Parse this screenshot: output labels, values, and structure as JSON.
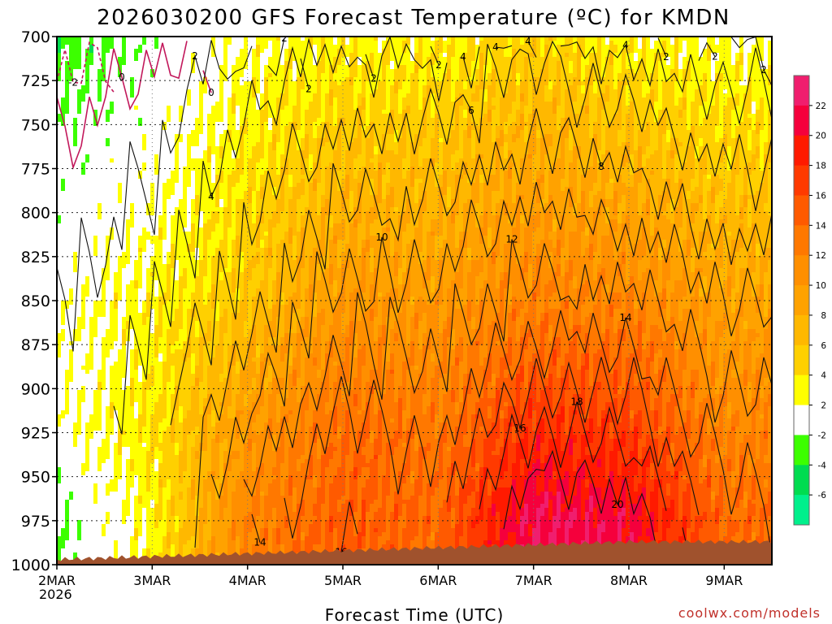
{
  "chart_data": {
    "type": "heatmap",
    "title": "2026030200 GFS Forecast Temperature (ºC) for KMDN",
    "xlabel": "Forecast Time (UTC)",
    "ylabel": "",
    "source": "coolwx.com/models",
    "year_label": "2026",
    "x_ticks": [
      "2MAR",
      "3MAR",
      "4MAR",
      "5MAR",
      "6MAR",
      "7MAR",
      "8MAR",
      "9MAR"
    ],
    "y_ticks": [
      700,
      725,
      750,
      775,
      800,
      825,
      850,
      875,
      900,
      925,
      950,
      975,
      1000
    ],
    "ylim": [
      1000,
      700
    ],
    "x_range_days": [
      0,
      7.5
    ],
    "colorbar": {
      "labels": [
        "22",
        "20",
        "18",
        "16",
        "14",
        "12",
        "10",
        "8",
        "6",
        "4",
        "2",
        "-2",
        "-4",
        "-6"
      ],
      "levels": [
        {
          "label": "22",
          "color": "#f01e6e"
        },
        {
          "label": "20",
          "color": "#f5003c"
        },
        {
          "label": "18",
          "color": "#ff1a00"
        },
        {
          "label": "16",
          "color": "#ff3a00"
        },
        {
          "label": "14",
          "color": "#ff5a00"
        },
        {
          "label": "12",
          "color": "#ff7800"
        },
        {
          "label": "10",
          "color": "#ff8f00"
        },
        {
          "label": "8",
          "color": "#ffa200"
        },
        {
          "label": "6",
          "color": "#ffb800"
        },
        {
          "label": "4",
          "color": "#ffd000"
        },
        {
          "label": "2",
          "color": "#ffff00"
        },
        {
          "label": "-2",
          "color": "#ffffff"
        },
        {
          "label": "-4",
          "color": "#3cff00"
        },
        {
          "label": "-6",
          "color": "#00dc50"
        },
        {
          "label": "",
          "color": "#00f08c"
        }
      ]
    },
    "terrain_color": "#a0522d",
    "contour_labels": [
      "-2",
      "0",
      "2",
      "4",
      "6",
      "8",
      "10",
      "12",
      "14",
      "16",
      "18",
      "20"
    ],
    "series": [
      {
        "name": "700 hPa",
        "values": [
          -3,
          -1,
          2,
          3,
          3,
          5,
          3,
          2
        ]
      },
      {
        "name": "850 hPa",
        "values": [
          1,
          3,
          6,
          10,
          10,
          12,
          12,
          9
        ]
      },
      {
        "name": "925 hPa",
        "values": [
          1,
          4,
          10,
          14,
          13,
          18,
          17,
          12
        ]
      },
      {
        "name": "975 hPa",
        "values": [
          -2,
          3,
          12,
          15,
          14,
          22,
          21,
          14
        ]
      }
    ]
  }
}
